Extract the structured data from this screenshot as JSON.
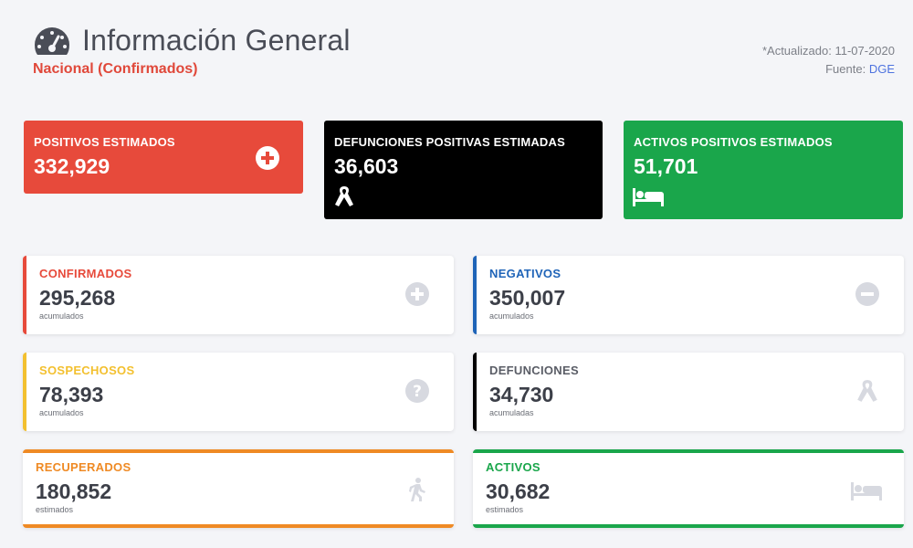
{
  "header": {
    "title": "Información General",
    "subtitle": "Nacional (Confirmados)",
    "updated": "*Actualizado: 11-07-2020",
    "source_label": "Fuente:",
    "source": "DGE",
    "icon": "gauge-icon"
  },
  "summary": [
    {
      "label": "POSITIVOS ESTIMADOS",
      "value": "332,929",
      "icon": "plus-circle-icon",
      "color": "#e74a3b"
    },
    {
      "label": "DEFUNCIONES POSITIVAS ESTIMADAS",
      "value": "36,603",
      "icon": "ribbon-icon",
      "color": "#000000"
    },
    {
      "label": "ACTIVOS POSITIVOS ESTIMADOS",
      "value": "51,701",
      "icon": "bed-icon",
      "color": "#1aa64b"
    }
  ],
  "cards": [
    {
      "label": "CONFIRMADOS",
      "value": "295,268",
      "note": "acumulados",
      "icon": "plus-circle-icon",
      "color": "#e74a3b"
    },
    {
      "label": "NEGATIVOS",
      "value": "350,007",
      "note": "acumulados",
      "icon": "minus-circle-icon",
      "color": "#1f64b8"
    },
    {
      "label": "SOSPECHOSOS",
      "value": "78,393",
      "note": "acumulados",
      "icon": "question-circle-icon",
      "color": "#f3c02f"
    },
    {
      "label": "DEFUNCIONES",
      "value": "34,730",
      "note": "acumuladas",
      "icon": "ribbon-icon",
      "color": "#000000"
    },
    {
      "label": "RECUPERADOS",
      "value": "180,852",
      "note": "estimados",
      "icon": "walking-icon",
      "color": "#ef8a24"
    },
    {
      "label": "ACTIVOS",
      "value": "30,682",
      "note": "estimados",
      "icon": "bed-icon",
      "color": "#1aa64b"
    }
  ]
}
